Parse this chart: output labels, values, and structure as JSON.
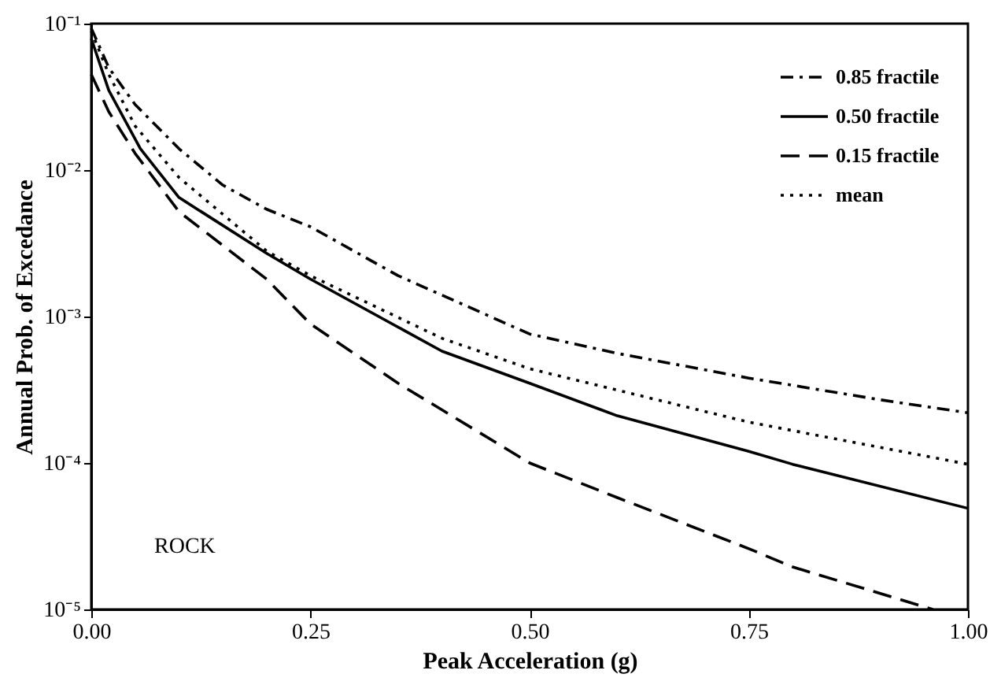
{
  "chart_data": {
    "type": "line",
    "xlabel": "Peak Acceleration (g)",
    "ylabel": "Annual Prob. of Excedance",
    "log": "y",
    "xlim": [
      0,
      1
    ],
    "xticks": [
      {
        "value": 0,
        "label": "0.00"
      },
      {
        "value": 0.25,
        "label": "0.25"
      },
      {
        "value": 0.5,
        "label": "0.50"
      },
      {
        "value": 0.75,
        "label": "0.75"
      },
      {
        "value": 1,
        "label": "1.00"
      }
    ],
    "ylim": [
      1e-05,
      0.1
    ],
    "yticks": [
      {
        "value": 1e-05,
        "label": "10⁻⁵"
      },
      {
        "value": 0.0001,
        "label": "10⁻⁴"
      },
      {
        "value": 0.001,
        "label": "10⁻³"
      },
      {
        "value": 0.01,
        "label": "10⁻²"
      },
      {
        "value": 0.1,
        "label": "10⁻¹"
      }
    ],
    "grid": false,
    "legend": "top right",
    "marker": "none",
    "annotations": [
      "ROCK"
    ],
    "series": [
      {
        "name": "0.85 fractile",
        "color": "#000000",
        "line_style": "dashdot",
        "x": [
          0,
          0.02,
          0.05,
          0.1,
          0.15,
          0.2,
          0.25,
          0.35,
          0.5,
          0.6,
          0.75,
          0.9,
          1.0
        ],
        "values": [
          0.093,
          0.05,
          0.028,
          0.014,
          0.0079,
          0.0054,
          0.0041,
          0.0019,
          0.00076,
          0.00056,
          0.00038,
          0.00027,
          0.00022
        ]
      },
      {
        "name": "0.50 fractile",
        "color": "#000000",
        "line_style": "solid",
        "x": [
          0,
          0.02,
          0.056,
          0.1,
          0.2,
          0.25,
          0.4,
          0.5,
          0.6,
          0.75,
          0.8,
          1.0
        ],
        "values": [
          0.079,
          0.035,
          0.014,
          0.0065,
          0.0027,
          0.0018,
          0.00058,
          0.00035,
          0.00021,
          0.00012,
          9.8e-05,
          4.9e-05
        ]
      },
      {
        "name": "0.15 fractile",
        "color": "#000000",
        "line_style": "dashed",
        "x": [
          0,
          0.02,
          0.05,
          0.1,
          0.2,
          0.25,
          0.35,
          0.5,
          0.6,
          0.75,
          0.8,
          0.96
        ],
        "values": [
          0.045,
          0.025,
          0.013,
          0.0052,
          0.0018,
          0.00089,
          0.00035,
          0.0001,
          5.8e-05,
          2.6e-05,
          1.95e-05,
          1e-05
        ]
      },
      {
        "name": "mean",
        "color": "#000000",
        "line_style": "dotted",
        "x": [
          0,
          0.02,
          0.05,
          0.1,
          0.2,
          0.25,
          0.4,
          0.5,
          0.75,
          1.0
        ],
        "values": [
          0.089,
          0.045,
          0.02,
          0.0089,
          0.0028,
          0.0019,
          0.00071,
          0.00044,
          0.00019,
          9.8e-05
        ]
      }
    ]
  }
}
